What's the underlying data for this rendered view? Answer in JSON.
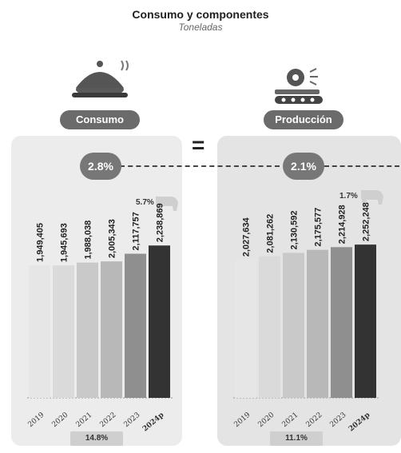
{
  "header": {
    "title": "Consumo y componentes",
    "subtitle": "Toneladas"
  },
  "equal_sign": "=",
  "panels": [
    {
      "label": "Consumo",
      "growth": "2.8%",
      "change_tag": "5.7%",
      "total_change": "14.8%",
      "icon": "cloche-icon"
    },
    {
      "label": "Producción",
      "growth": "2.1%",
      "change_tag": "1.7%",
      "total_change": "11.1%",
      "icon": "conveyor-icon"
    }
  ],
  "colors": {
    "bar_shades": [
      "#e6e6e6",
      "#dadada",
      "#c9c9c9",
      "#b8b8b8",
      "#8f8f8f",
      "#333333"
    ],
    "pill": "#6b6b6b"
  },
  "chart_data": [
    {
      "type": "bar",
      "title": "Consumo",
      "categories": [
        "2019",
        "2020",
        "2021",
        "2022",
        "2023",
        "2024p"
      ],
      "values": [
        1949405,
        1945693,
        1988038,
        2005343,
        2117757,
        2238869
      ],
      "value_labels": [
        "1,949,405",
        "1,945,693",
        "1,988,038",
        "2,005,343",
        "2,117,757",
        "2,238,869"
      ],
      "ylim": [
        0,
        2700000
      ]
    },
    {
      "type": "bar",
      "title": "Producción",
      "categories": [
        "2019",
        "2020",
        "2021",
        "2022",
        "2023",
        "2024p"
      ],
      "values": [
        2027634,
        2081262,
        2130592,
        2175577,
        2214928,
        2252248
      ],
      "value_labels": [
        "2,027,634",
        "2,081,262",
        "2,130,592",
        "2,175,577",
        "2,214,928",
        "2,252,248"
      ],
      "ylim": [
        0,
        2700000
      ]
    }
  ]
}
